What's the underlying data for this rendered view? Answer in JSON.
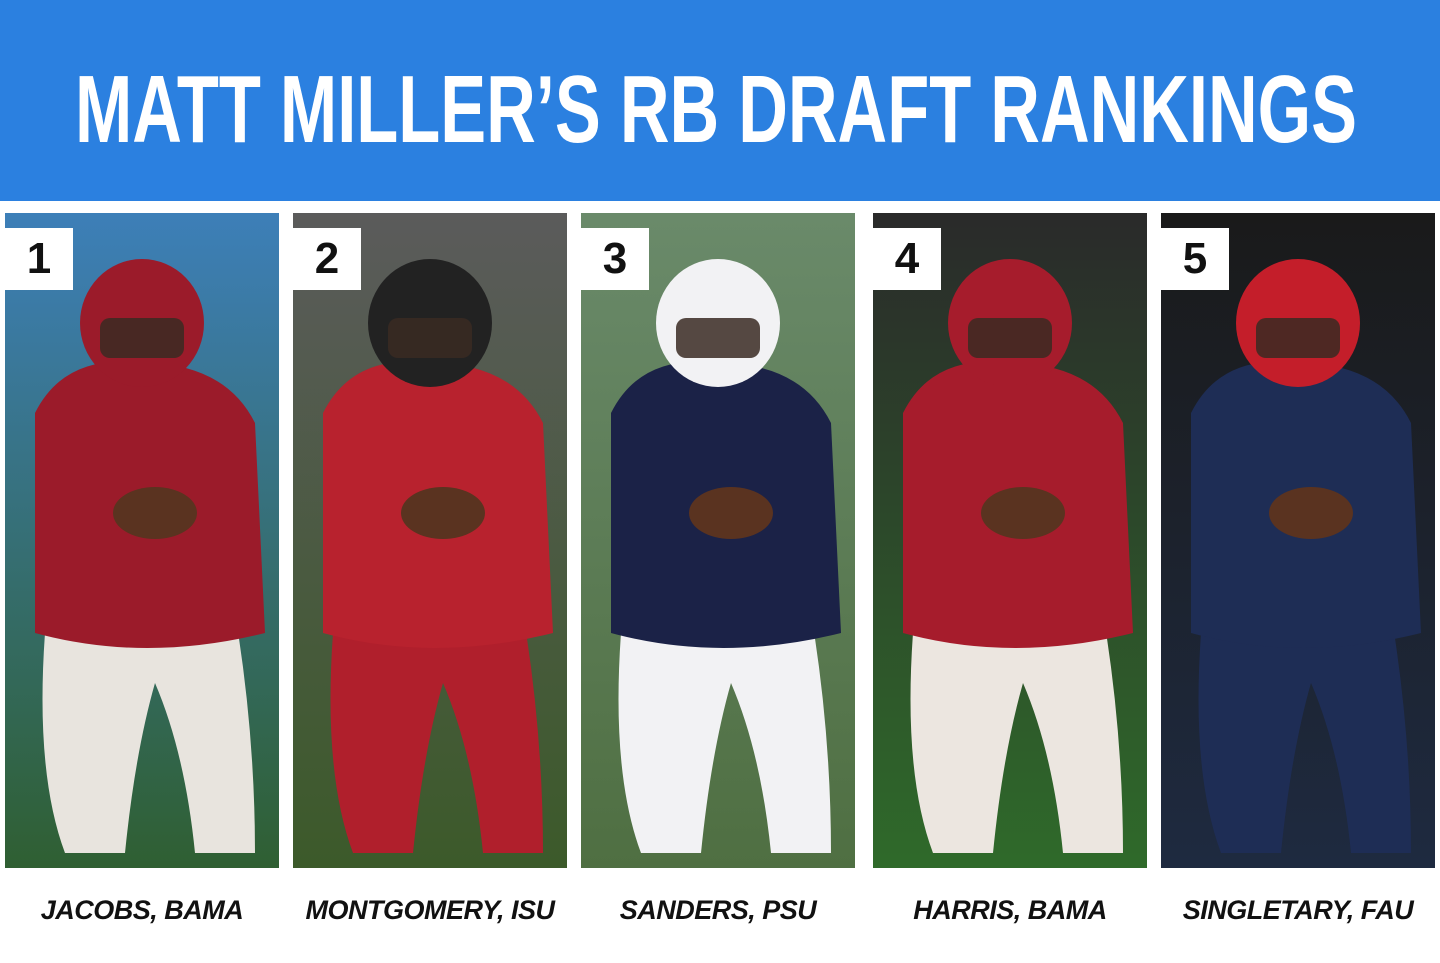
{
  "header": {
    "title": "MATT MILLER’S RB DRAFT RANKINGS"
  },
  "players": [
    {
      "rank": "1",
      "label": "JACOBS, BAMA"
    },
    {
      "rank": "2",
      "label": "MONTGOMERY, ISU"
    },
    {
      "rank": "3",
      "label": "SANDERS, PSU"
    },
    {
      "rank": "4",
      "label": "HARRIS, BAMA"
    },
    {
      "rank": "5",
      "label": "SINGLETARY, FAU"
    }
  ]
}
